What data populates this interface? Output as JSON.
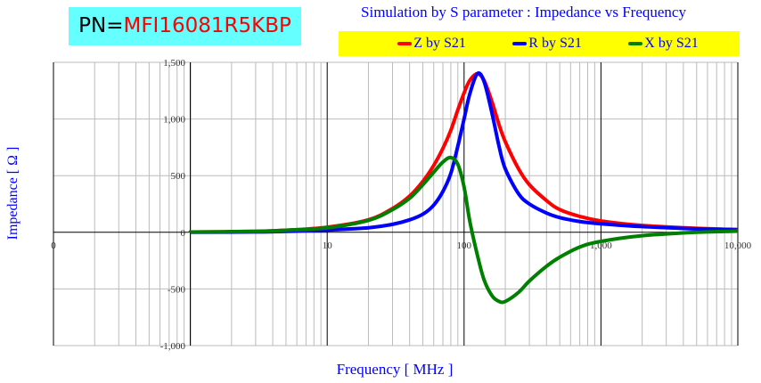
{
  "header": {
    "pn_key": "PN=",
    "pn_value": "MFI16081R5KBP",
    "title": "Simulation by S parameter : Impedance vs Frequency"
  },
  "colors": {
    "Z": "#ff0000",
    "R": "#0000ff",
    "X": "#008000"
  },
  "chart_data": {
    "type": "line",
    "title": "Simulation by S parameter : Impedance vs Frequency",
    "xlabel": "Frequency [ MHz ]",
    "ylabel": "Impedance [ Ω ]",
    "xscale": "log",
    "xlim": [
      0.1,
      10000
    ],
    "ylim": [
      -1000,
      1500
    ],
    "xticks": [
      {
        "v": 0.1,
        "label": "0"
      },
      {
        "v": 10,
        "label": "10"
      },
      {
        "v": 100,
        "label": "100"
      },
      {
        "v": 1000,
        "label": "1,000"
      },
      {
        "v": 10000,
        "label": "10,000"
      }
    ],
    "yticks": [
      {
        "v": 1500,
        "label": "1,500"
      },
      {
        "v": 1000,
        "label": "1,000"
      },
      {
        "v": 500,
        "label": "500"
      },
      {
        "v": 0,
        "label": "0"
      },
      {
        "v": -500,
        "label": "-500"
      },
      {
        "v": -1000,
        "label": "-1,000"
      }
    ],
    "grid": true,
    "legend": "top",
    "x": [
      1,
      3,
      5,
      10,
      20,
      30,
      40,
      50,
      60,
      70,
      80,
      90,
      100,
      110,
      125,
      140,
      160,
      180,
      200,
      250,
      300,
      400,
      500,
      700,
      1000,
      2000,
      5000,
      10000
    ],
    "series": [
      {
        "name": "Z by S21",
        "key": "Z",
        "values": [
          2,
          8,
          18,
          45,
          110,
          210,
          320,
          450,
          590,
          740,
          900,
          1080,
          1230,
          1340,
          1400,
          1340,
          1150,
          950,
          800,
          560,
          420,
          280,
          200,
          140,
          100,
          60,
          35,
          25
        ]
      },
      {
        "name": "R by S21",
        "key": "R",
        "values": [
          0,
          3,
          8,
          20,
          40,
          70,
          110,
          160,
          240,
          360,
          520,
          760,
          1000,
          1220,
          1400,
          1330,
          1050,
          760,
          560,
          340,
          250,
          170,
          130,
          95,
          75,
          50,
          30,
          20
        ]
      },
      {
        "name": "X by S21",
        "key": "X",
        "values": [
          2,
          8,
          18,
          40,
          105,
          200,
          300,
          420,
          530,
          620,
          660,
          600,
          400,
          100,
          -200,
          -420,
          -560,
          -610,
          -610,
          -530,
          -430,
          -300,
          -220,
          -130,
          -80,
          -30,
          0,
          10
        ]
      }
    ]
  }
}
